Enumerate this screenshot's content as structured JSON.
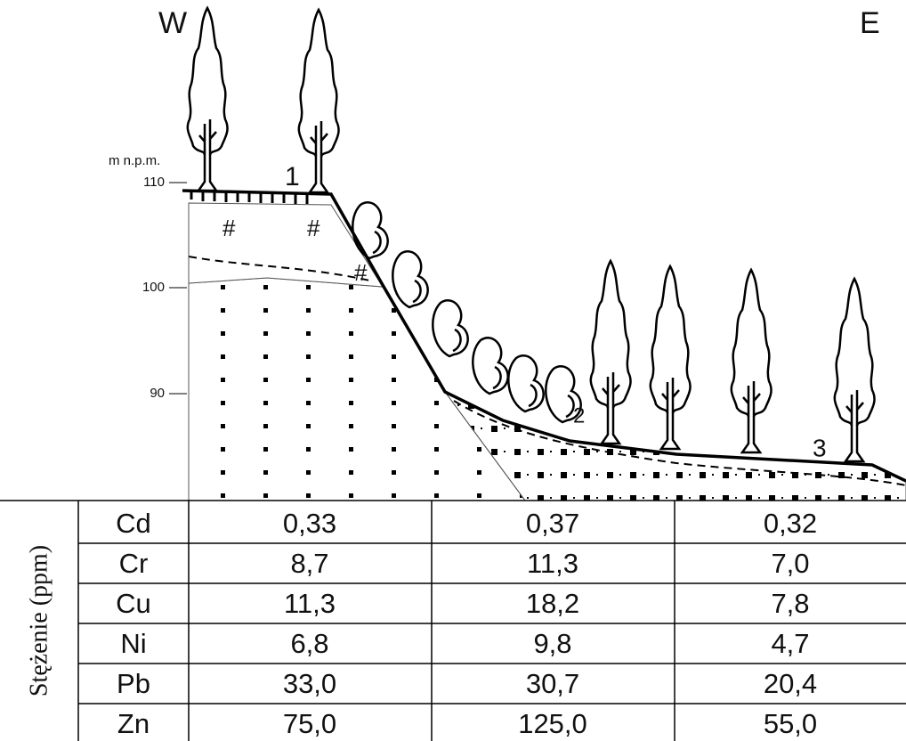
{
  "header": {
    "west": "W",
    "east": "E"
  },
  "axis": {
    "unit": "m n.p.m.",
    "ticks": [
      110,
      100,
      90
    ]
  },
  "sites": [
    "1",
    "2",
    "3"
  ],
  "table": {
    "row_label": "Stężenie (ppm)",
    "rows": [
      [
        "Cd",
        "0,33",
        "0,37",
        "0,32"
      ],
      [
        "Cr",
        "8,7",
        "11,3",
        "7,0"
      ],
      [
        "Cu",
        "11,3",
        "18,2",
        "7,8"
      ],
      [
        "Ni",
        "6,8",
        "9,8",
        "4,7"
      ],
      [
        "Pb",
        "33,0",
        "30,7",
        "20,4"
      ],
      [
        "Zn",
        "75,0",
        "125,0",
        "55,0"
      ]
    ]
  }
}
